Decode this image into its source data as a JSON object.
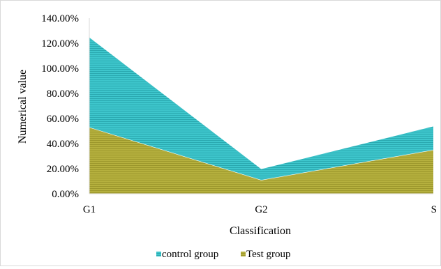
{
  "chart_data": {
    "type": "area",
    "stacked": true,
    "categories": [
      "G1",
      "G2",
      "S"
    ],
    "series": [
      {
        "name": "control group",
        "values": [
          0.72,
          0.09,
          0.19
        ],
        "color": "#3ec6cc",
        "pattern": "horizontal-stripes"
      },
      {
        "name": "Test group",
        "values": [
          0.53,
          0.11,
          0.35
        ],
        "color": "#b5b03e",
        "pattern": "horizontal-stripes"
      }
    ],
    "stack_order": [
      "Test group",
      "control group"
    ],
    "title": "",
    "xlabel": "Classification",
    "ylabel": "Numerical value",
    "ylim": [
      0,
      1.4
    ],
    "yticks": [
      "0.00%",
      "20.00%",
      "40.00%",
      "60.00%",
      "80.00%",
      "100.00%",
      "120.00%",
      "140.00%"
    ],
    "grid": false,
    "legend_position": "bottom"
  }
}
